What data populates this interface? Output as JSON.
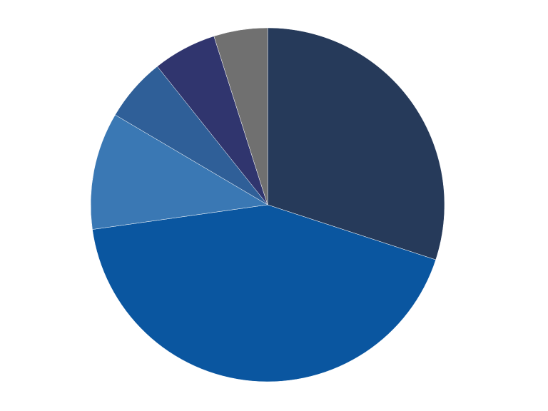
{
  "chart_data": {
    "type": "pie",
    "values": [
      30,
      42.7,
      10.7,
      5.8,
      5.8,
      4.9
    ],
    "colors": [
      "#263a5a",
      "#0a56a0",
      "#3a78b4",
      "#2f5f98",
      "#30356e",
      "#707070"
    ],
    "start_angle": 0,
    "direction": "clockwise"
  }
}
